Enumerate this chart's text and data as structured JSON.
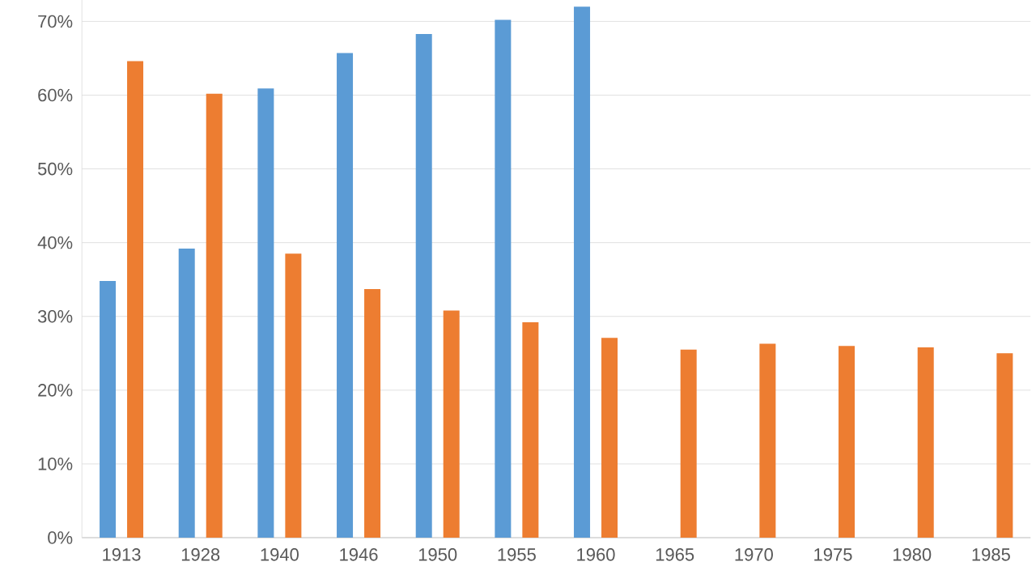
{
  "chart_data": {
    "type": "bar",
    "categories": [
      "1913",
      "1928",
      "1940",
      "1946",
      "1950",
      "1955",
      "1960",
      "1965",
      "1970",
      "1975",
      "1980",
      "1985"
    ],
    "series": [
      {
        "color": "#5b9bd5",
        "values": [
          34.8,
          39.2,
          60.9,
          65.7,
          68.3,
          70.2,
          72.0,
          null,
          null,
          null,
          null,
          null
        ]
      },
      {
        "color": "#ed7d31",
        "values": [
          64.6,
          60.2,
          38.5,
          33.7,
          30.8,
          29.2,
          27.1,
          25.5,
          26.3,
          26.0,
          25.8,
          25.0
        ]
      }
    ],
    "ylim": [
      0,
      72.9
    ],
    "yticks": [
      {
        "value": 0,
        "label": "0%"
      },
      {
        "value": 10,
        "label": "10%"
      },
      {
        "value": 20,
        "label": "20%"
      },
      {
        "value": 30,
        "label": "30%"
      },
      {
        "value": 40,
        "label": "40%"
      },
      {
        "value": 50,
        "label": "50%"
      },
      {
        "value": 60,
        "label": "60%"
      },
      {
        "value": 70,
        "label": "70%"
      }
    ],
    "grid": "y"
  }
}
